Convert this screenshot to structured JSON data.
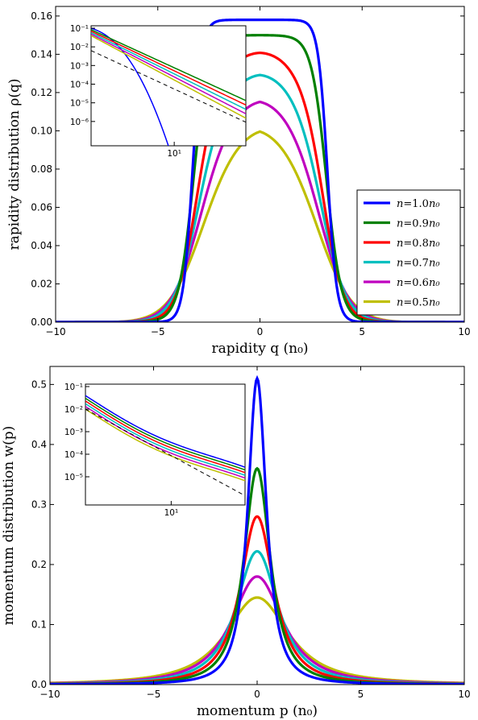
{
  "colors": [
    "#0000ff",
    "#008000",
    "#ff0000",
    "#00bfbf",
    "#bf00bf",
    "#bfbf00"
  ],
  "chart_data": [
    {
      "type": "line",
      "xlabel": "rapidity  q (n₀)",
      "ylabel": "rapidity  distribution  ρ(q)",
      "xlim": [
        -10,
        10
      ],
      "ylim": [
        0,
        0.165
      ],
      "xticks": [
        "−10",
        "−5",
        "0",
        "5",
        "10"
      ],
      "yticks": [
        "0.00",
        "0.02",
        "0.04",
        "0.06",
        "0.08",
        "0.10",
        "0.12",
        "0.14",
        "0.16"
      ],
      "legend_position": "lower-right",
      "series": [
        {
          "name": "n=1.0n₀",
          "peak": 0.158,
          "halfwidth": 3.3,
          "sharp": 8
        },
        {
          "name": "n=0.9n₀",
          "peak": 0.15,
          "halfwidth": 3.25,
          "sharp": 5
        },
        {
          "name": "n=0.8n₀",
          "peak": 0.141,
          "halfwidth": 3.2,
          "sharp": 3.6
        },
        {
          "name": "n=0.7n₀",
          "peak": 0.13,
          "halfwidth": 3.15,
          "sharp": 2.9
        },
        {
          "name": "n=0.6n₀",
          "peak": 0.117,
          "halfwidth": 3.1,
          "sharp": 2.4
        },
        {
          "name": "n=0.5n₀",
          "peak": 0.103,
          "halfwidth": 3.05,
          "sharp": 2.0
        }
      ],
      "inset": {
        "xscale": "log",
        "yscale": "log",
        "xtick_label": "10¹",
        "yticks": [
          "10⁻¹",
          "10⁻²",
          "10⁻³",
          "10⁻⁴",
          "10⁻⁵",
          "10⁻⁶"
        ],
        "reference_line": "dashed"
      }
    },
    {
      "type": "line",
      "xlabel": "momentum  p (n₀)",
      "ylabel": "momentum  distribution  w(p)",
      "xlim": [
        -10,
        10
      ],
      "ylim": [
        0,
        0.53
      ],
      "xticks": [
        "−10",
        "−5",
        "0",
        "5",
        "10"
      ],
      "yticks": [
        "0.0",
        "0.1",
        "0.2",
        "0.3",
        "0.4",
        "0.5"
      ],
      "series": [
        {
          "name": "n=1.0n₀",
          "peak": 0.51,
          "gamma": 0.62
        },
        {
          "name": "n=0.9n₀",
          "peak": 0.36,
          "gamma": 0.88
        },
        {
          "name": "n=0.8n₀",
          "peak": 0.28,
          "gamma": 1.12
        },
        {
          "name": "n=0.7n₀",
          "peak": 0.222,
          "gamma": 1.4
        },
        {
          "name": "n=0.6n₀",
          "peak": 0.18,
          "gamma": 1.72
        },
        {
          "name": "n=0.5n₀",
          "peak": 0.145,
          "gamma": 2.1
        }
      ],
      "inset": {
        "xscale": "log",
        "yscale": "log",
        "xtick_label": "10¹",
        "yticks": [
          "10⁻¹",
          "10⁻²",
          "10⁻³",
          "10⁻⁴",
          "10⁻⁵"
        ],
        "reference_line": "dashed"
      }
    }
  ],
  "legend": {
    "entries": [
      {
        "prefix": "n",
        "value": "=1.0",
        "suffix": "n₀"
      },
      {
        "prefix": "n",
        "value": "=0.9",
        "suffix": "n₀"
      },
      {
        "prefix": "n",
        "value": "=0.8",
        "suffix": "n₀"
      },
      {
        "prefix": "n",
        "value": "=0.7",
        "suffix": "n₀"
      },
      {
        "prefix": "n",
        "value": "=0.6",
        "suffix": "n₀"
      },
      {
        "prefix": "n",
        "value": "=0.5",
        "suffix": "n₀"
      }
    ]
  }
}
